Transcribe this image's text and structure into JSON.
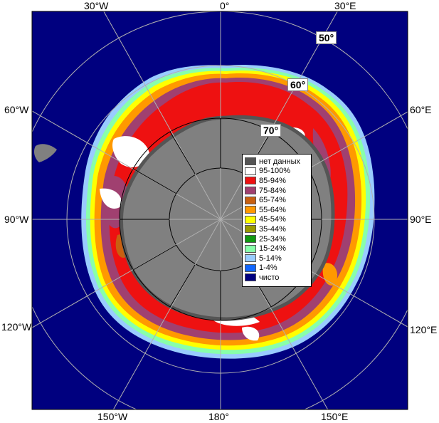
{
  "labels": {
    "lon_top_left": "30°W",
    "lon_top_center": "0°",
    "lon_top_right": "30°E",
    "lon_left_upper": "60°W",
    "lon_right_upper": "60°E",
    "lon_left_mid": "90°W",
    "lon_right_mid": "90°E",
    "lon_left_lower": "120°W",
    "lon_right_lower": "120°E",
    "lon_bottom_left": "150°W",
    "lon_bottom_center": "180°",
    "lon_bottom_right": "150°E",
    "lat_50": "50°",
    "lat_60": "60°",
    "lat_70": "70°"
  },
  "legend": {
    "items": [
      {
        "label": "нет данных",
        "color": "#555555"
      },
      {
        "label": "95-100%",
        "color": "#ffffff"
      },
      {
        "label": "85-94%",
        "color": "#ee1111"
      },
      {
        "label": "75-84%",
        "color": "#a04070"
      },
      {
        "label": "65-74%",
        "color": "#c86010"
      },
      {
        "label": "55-64%",
        "color": "#ff9900"
      },
      {
        "label": "45-54%",
        "color": "#ffff00"
      },
      {
        "label": "35-44%",
        "color": "#999900"
      },
      {
        "label": "25-34%",
        "color": "#119911"
      },
      {
        "label": "15-24%",
        "color": "#88ffaa"
      },
      {
        "label": "5-14%",
        "color": "#99ccff"
      },
      {
        "label": "1-4%",
        "color": "#1166ff"
      },
      {
        "label": "чисто",
        "color": "#000080"
      }
    ]
  },
  "colors": {
    "ocean": "#00007f",
    "land": "#808080",
    "land_nodata": "#555555",
    "grid": "#b0b0b0",
    "inner_grid": "#000000"
  }
}
